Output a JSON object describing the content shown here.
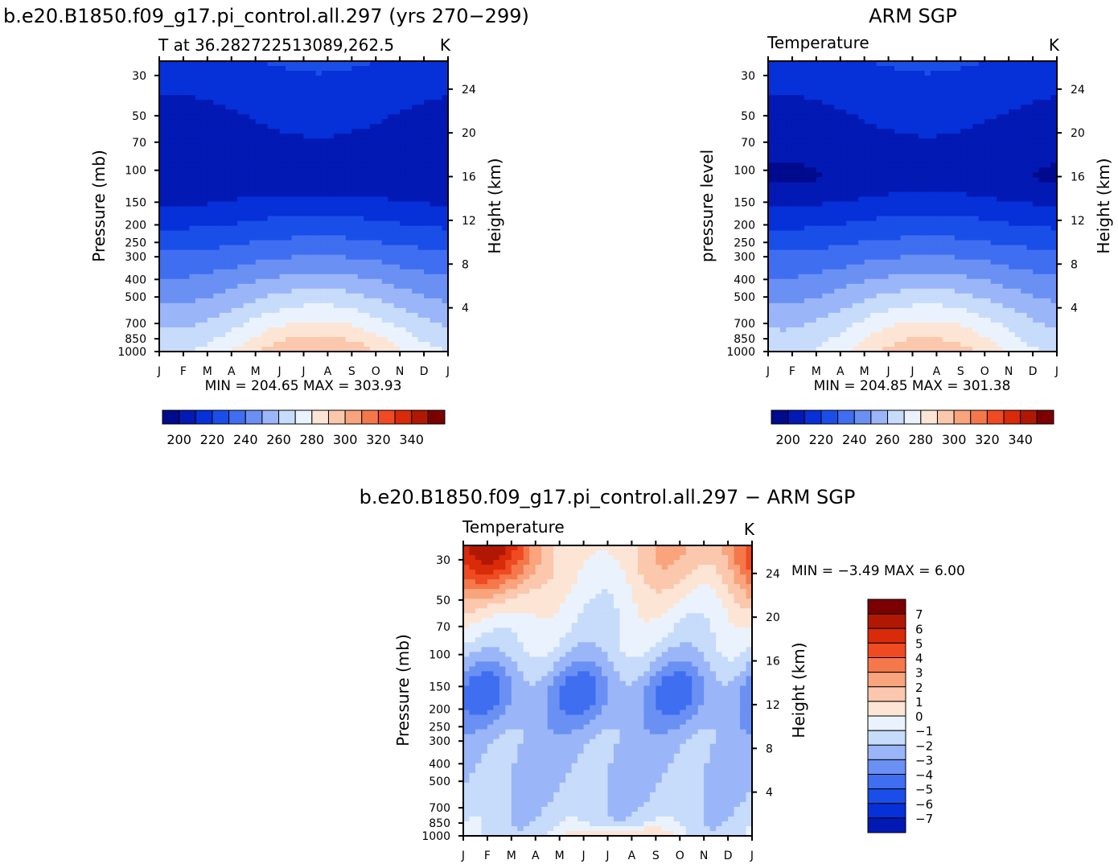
{
  "colors": {
    "temp_scale": [
      "#000a8c",
      "#0219b4",
      "#0630d8",
      "#1a4ee8",
      "#3f6ef0",
      "#6a90f4",
      "#9ab6f8",
      "#c7dbfb",
      "#eaf3fd",
      "#fde5d5",
      "#fbc8ad",
      "#f9a47c",
      "#f5784b",
      "#ef4a22",
      "#d92a0a",
      "#b11804",
      "#7c0000"
    ],
    "diff_scale": [
      "#000a8c",
      "#0219b4",
      "#0630d8",
      "#1a4ee8",
      "#3f6ef0",
      "#6a90f4",
      "#9ab6f8",
      "#c7dbfb",
      "#eaf3fd",
      "#fde5d5",
      "#fbc8ad",
      "#f9a47c",
      "#f5784b",
      "#ef4a22",
      "#d92a0a",
      "#b11804",
      "#7c0000"
    ]
  },
  "panels": [
    {
      "id": "model",
      "title": "b.e20.B1850.f09_g17.pi_control.all.297 (yrs 270−299)",
      "subtitle_left": "T at 36.282722513089,262.5",
      "subtitle_right": "K",
      "ylabel_left": "Pressure  (mb)",
      "ylabel_right": "Height  (km)",
      "minmax": "MIN  =  204.65  MAX  =  303.93",
      "colorbar_labels": [
        "200",
        "220",
        "240",
        "260",
        "280",
        "300",
        "320",
        "340"
      ]
    },
    {
      "id": "obs",
      "title": "ARM  SGP",
      "subtitle_left": "Temperature",
      "subtitle_right": "K",
      "ylabel_left": "pressure  level",
      "ylabel_right": "Height  (km)",
      "minmax": "MIN  =  204.85  MAX  =  301.38",
      "colorbar_labels": [
        "200",
        "220",
        "240",
        "260",
        "280",
        "300",
        "320",
        "340"
      ]
    },
    {
      "id": "diff",
      "title": "b.e20.B1850.f09_g17.pi_control.all.297  −  ARM  SGP",
      "subtitle_left": "Temperature",
      "subtitle_right": "K",
      "ylabel_left": "Pressure  (mb)",
      "ylabel_right": "Height  (km)",
      "minmax": "MIN  =    −3.49  MAX  =      6.00",
      "colorbar_labels": [
        "7",
        "6",
        "5",
        "4",
        "3",
        "2",
        "1",
        "0",
        "−1",
        "−2",
        "−3",
        "−4",
        "−5",
        "−6",
        "−7"
      ]
    }
  ],
  "chart_data": [
    {
      "type": "heatmap",
      "title": "b.e20.B1850.f09_g17.pi_control.all.297 (yrs 270−299)",
      "subtitle": "T at 36.282722513089,262.5",
      "units": "K",
      "xlabel": "",
      "ylabel": "Pressure  (mb)",
      "ylabel_right": "Height  (km)",
      "x_ticks": [
        "J",
        "F",
        "M",
        "A",
        "M",
        "J",
        "J",
        "A",
        "S",
        "O",
        "N",
        "D",
        "J"
      ],
      "y_ticks_pressure": [
        30,
        50,
        70,
        100,
        150,
        200,
        250,
        300,
        400,
        500,
        700,
        850,
        1000
      ],
      "y_ticks_height": [
        24,
        20,
        16,
        12,
        8,
        4
      ],
      "ylim_pressure": [
        1000,
        25
      ],
      "levels": [
        200,
        205,
        210,
        215,
        220,
        225,
        230,
        235,
        240,
        245,
        250,
        255,
        260,
        265,
        270,
        275,
        280,
        285,
        290,
        295,
        300,
        305,
        310,
        315,
        320,
        325,
        330,
        335,
        340
      ],
      "colorbar_labels": [
        200,
        220,
        240,
        260,
        280,
        300,
        320,
        340
      ],
      "min": 204.65,
      "max": 303.93
    },
    {
      "type": "heatmap",
      "title": "ARM  SGP",
      "subtitle": "Temperature",
      "units": "K",
      "xlabel": "",
      "ylabel": "pressure  level",
      "ylabel_right": "Height  (km)",
      "x_ticks": [
        "J",
        "F",
        "M",
        "A",
        "M",
        "J",
        "J",
        "A",
        "S",
        "O",
        "N",
        "D",
        "J"
      ],
      "y_ticks_pressure": [
        30,
        50,
        70,
        100,
        150,
        200,
        250,
        300,
        400,
        500,
        700,
        850,
        1000
      ],
      "y_ticks_height": [
        24,
        20,
        16,
        12,
        8,
        4
      ],
      "ylim_pressure": [
        1000,
        25
      ],
      "colorbar_labels": [
        200,
        220,
        240,
        260,
        280,
        300,
        320,
        340
      ],
      "min": 204.85,
      "max": 301.38
    },
    {
      "type": "heatmap",
      "title": "b.e20.B1850.f09_g17.pi_control.all.297  −  ARM  SGP",
      "subtitle": "Temperature",
      "units": "K",
      "xlabel": "",
      "ylabel": "Pressure  (mb)",
      "ylabel_right": "Height  (km)",
      "x_ticks": [
        "J",
        "F",
        "M",
        "A",
        "M",
        "J",
        "J",
        "A",
        "S",
        "O",
        "N",
        "D",
        "J"
      ],
      "y_ticks_pressure": [
        30,
        50,
        70,
        100,
        150,
        200,
        250,
        300,
        400,
        500,
        700,
        850,
        1000
      ],
      "y_ticks_height": [
        24,
        20,
        16,
        12,
        8,
        4
      ],
      "ylim_pressure": [
        1000,
        25
      ],
      "colorbar_labels": [
        7,
        6,
        5,
        4,
        3,
        2,
        1,
        0,
        -1,
        -2,
        -3,
        -4,
        -5,
        -6,
        -7
      ],
      "min": -3.49,
      "max": 6.0
    }
  ]
}
